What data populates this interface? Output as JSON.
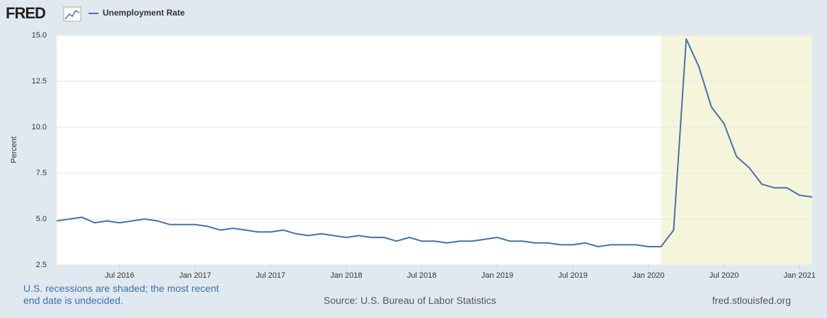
{
  "header": {
    "logo": "FRED"
  },
  "chart_data": {
    "type": "line",
    "y_label": "Percent",
    "x": [
      "2016-02",
      "2016-03",
      "2016-04",
      "2016-05",
      "2016-06",
      "2016-07",
      "2016-08",
      "2016-09",
      "2016-10",
      "2016-11",
      "2016-12",
      "2017-01",
      "2017-02",
      "2017-03",
      "2017-04",
      "2017-05",
      "2017-06",
      "2017-07",
      "2017-08",
      "2017-09",
      "2017-10",
      "2017-11",
      "2017-12",
      "2018-01",
      "2018-02",
      "2018-03",
      "2018-04",
      "2018-05",
      "2018-06",
      "2018-07",
      "2018-08",
      "2018-09",
      "2018-10",
      "2018-11",
      "2018-12",
      "2019-01",
      "2019-02",
      "2019-03",
      "2019-04",
      "2019-05",
      "2019-06",
      "2019-07",
      "2019-08",
      "2019-09",
      "2019-10",
      "2019-11",
      "2019-12",
      "2020-01",
      "2020-02",
      "2020-03",
      "2020-04",
      "2020-05",
      "2020-06",
      "2020-07",
      "2020-08",
      "2020-09",
      "2020-10",
      "2020-11",
      "2020-12",
      "2021-01",
      "2021-02"
    ],
    "series": [
      {
        "name": "Unemployment Rate",
        "color": "#4572a7",
        "values": [
          4.9,
          5.0,
          5.1,
          4.8,
          4.9,
          4.8,
          4.9,
          5.0,
          4.9,
          4.7,
          4.7,
          4.7,
          4.6,
          4.4,
          4.5,
          4.4,
          4.3,
          4.3,
          4.4,
          4.2,
          4.1,
          4.2,
          4.1,
          4.0,
          4.1,
          4.0,
          4.0,
          3.8,
          4.0,
          3.8,
          3.8,
          3.7,
          3.8,
          3.8,
          3.9,
          4.0,
          3.8,
          3.8,
          3.7,
          3.7,
          3.6,
          3.6,
          3.7,
          3.5,
          3.6,
          3.6,
          3.6,
          3.5,
          3.5,
          4.4,
          14.8,
          13.3,
          11.1,
          10.2,
          8.4,
          7.8,
          6.9,
          6.7,
          6.7,
          6.3,
          6.2
        ]
      }
    ],
    "xlim": [
      "2016-02",
      "2021-02"
    ],
    "xticks": [
      {
        "value": "2016-07",
        "label": "Jul 2016"
      },
      {
        "value": "2017-01",
        "label": "Jan 2017"
      },
      {
        "value": "2017-07",
        "label": "Jul 2017"
      },
      {
        "value": "2018-01",
        "label": "Jan 2018"
      },
      {
        "value": "2018-07",
        "label": "Jul 2018"
      },
      {
        "value": "2019-01",
        "label": "Jan 2019"
      },
      {
        "value": "2019-07",
        "label": "Jul 2019"
      },
      {
        "value": "2020-01",
        "label": "Jan 2020"
      },
      {
        "value": "2020-07",
        "label": "Jul 2020"
      },
      {
        "value": "2021-01",
        "label": "Jan 2021"
      }
    ],
    "ylim": [
      2.5,
      15
    ],
    "yticks": [
      2.5,
      {
        "value": 5,
        "label": "5.0"
      },
      7.5,
      {
        "value": 10,
        "label": "10.0"
      },
      12.5,
      {
        "value": 15,
        "label": "15.0"
      }
    ],
    "grid": true,
    "recession": {
      "start": "2020-02",
      "color": "#f5f5dc"
    }
  },
  "footer": {
    "note": "U.S. recessions are shaded; the most recent end date is undecided.",
    "source": "Source: U.S. Bureau of Labor Statistics",
    "site": "fred.stlouisfed.org"
  }
}
